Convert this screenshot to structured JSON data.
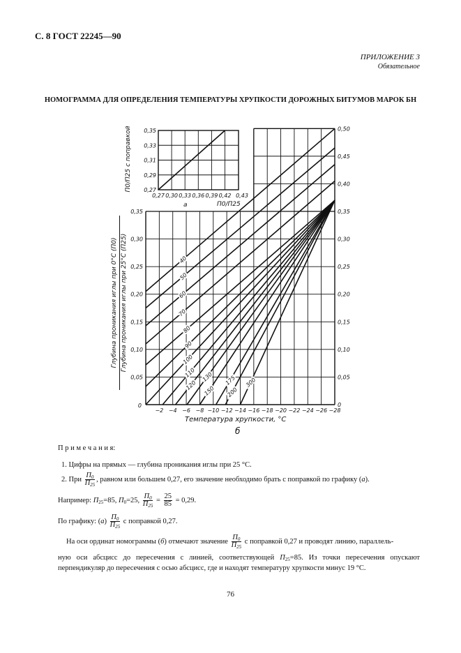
{
  "header": {
    "page_ref": "С. 8 ГОСТ 22245—90",
    "appendix": "ПРИЛОЖЕНИЕ 3",
    "appendix_status": "Обязательное"
  },
  "title": "НОМОГРАММА ДЛЯ ОПРЕДЕЛЕНИЯ ТЕМПЕРАТУРЫ ХРУПКОСТИ ДОРОЖНЫХ БИТУМОВ МАРОК БН",
  "chart_data": [
    {
      "id": "a",
      "type": "line",
      "caption": "а",
      "xlabel": "П0/П25",
      "ylabel": "П0/П25 с поправкой",
      "x_ticks": [
        "0,27",
        "0,30",
        "0,33",
        "0,36",
        "0,39",
        "0,42",
        "0,43"
      ],
      "y_ticks": [
        "0,27",
        "0,29",
        "0,31",
        "0,33",
        "0,35"
      ],
      "xlim": [
        0.27,
        0.43
      ],
      "ylim": [
        0.27,
        0.35
      ],
      "grid": true,
      "series": [
        {
          "points": [
            [
              0.27,
              0.27
            ],
            [
              0.42,
              0.35
            ]
          ]
        }
      ]
    },
    {
      "id": "b",
      "type": "line",
      "caption": "б",
      "xlabel": "Температура хрупкости, °С",
      "ylabel_top": "Глубина проникания иглы при 0°С (П0)",
      "ylabel_bottom": "Глубина проникания иглы при 25°С (П25)",
      "origin_label": "0",
      "x_ticks": [
        "−2",
        "−4",
        "−6",
        "−8",
        "−10",
        "−12",
        "−14",
        "−16",
        "−18",
        "−20",
        "−22",
        "−24",
        "−26",
        "−28"
      ],
      "y_ticks_left": [
        "0,05",
        "0,10",
        "0,15",
        "0,20",
        "0,25",
        "0,30",
        "0,35"
      ],
      "y_ticks_right": [
        "0",
        "0,05",
        "0,10",
        "0,15",
        "0,20",
        "0,25",
        "0,30",
        "0,35",
        "0,40",
        "0,45",
        "0,50"
      ],
      "xlim": [
        0,
        -28
      ],
      "ylim_left": [
        0,
        0.35
      ],
      "ylim_right": [
        0,
        0.5
      ],
      "grid": true,
      "series": [
        {
          "name": "40",
          "points": [
            [
              0,
              0.205
            ],
            [
              -28,
              0.5
            ]
          ]
        },
        {
          "name": "50",
          "points": [
            [
              0,
              0.175
            ],
            [
              -28,
              0.465
            ]
          ]
        },
        {
          "name": "60",
          "points": [
            [
              0,
              0.143
            ],
            [
              -28,
              0.435
            ]
          ]
        },
        {
          "name": "70",
          "points": [
            [
              0,
              0.11
            ],
            [
              -28,
              0.405
            ]
          ]
        },
        {
          "name": "80",
          "points": [
            [
              0,
              0.072
            ],
            [
              -28,
              0.37
            ]
          ]
        },
        {
          "name": "90",
          "points": [
            [
              0,
              0.033
            ],
            [
              -28,
              0.37
            ]
          ]
        },
        {
          "name": "100",
          "points": [
            [
              0,
              0
            ],
            [
              -28,
              0.37
            ]
          ]
        },
        {
          "name": "110",
          "points": [
            [
              -2.5,
              0
            ],
            [
              -28,
              0.37
            ]
          ]
        },
        {
          "name": "120",
          "points": [
            [
              -4.4,
              0
            ],
            [
              -28,
              0.37
            ]
          ]
        },
        {
          "name": "130",
          "points": [
            [
              -6.1,
              0
            ],
            [
              -28,
              0.37
            ]
          ]
        },
        {
          "name": "150",
          "points": [
            [
              -8,
              0
            ],
            [
              -28,
              0.37
            ]
          ]
        },
        {
          "name": "175",
          "points": [
            [
              -10.4,
              0
            ],
            [
              -28,
              0.37
            ]
          ]
        },
        {
          "name": "200",
          "points": [
            [
              -11.8,
              0
            ],
            [
              -28,
              0.37
            ]
          ]
        },
        {
          "name": "300",
          "points": [
            [
              -14,
              0
            ],
            [
              -28,
              0.37
            ]
          ]
        }
      ]
    }
  ],
  "frac": {
    "sym": "П",
    "num_sub": "0",
    "den_sub": "25"
  },
  "notes": {
    "heading": "П р и м е ч а н и я:",
    "n1": "1.  Цифры на прямых — глубина проникания иглы при 25 °С.",
    "n2_pre": "2.  При",
    "n2_post": ", равном или большем 0,27, его значение необходимо брать с поправкой по графику (",
    "n2_a": "а",
    "n2_end": ").",
    "ex_pre": "Например:",
    "ex_p25": "=85,",
    "ex_p0": "=25,",
    "ex_eq": "=",
    "ex_num": "25",
    "ex_den": "85",
    "ex_res": "= 0,29.",
    "g_pre": "По графику: (",
    "g_a": "а",
    "g_mid": ")",
    "g_post": "с поправкой 0,27.",
    "p1_pre": "На оси ординат номограммы (",
    "p1_b": "б",
    "p1_mid": ") отмечают значение",
    "p1_post": "с поправкой 0,27 и проводят линию, параллель-",
    "p2_pre": "ную оси абсцисс до пересечения с линией, соответствующей",
    "p2_post": "=85. Из точки пересечения опускают",
    "p3": "перпендикуляр до пересечения с осью абсцисс, где и находят температуру хрупкости минус 19 °С."
  },
  "page_number": "76"
}
